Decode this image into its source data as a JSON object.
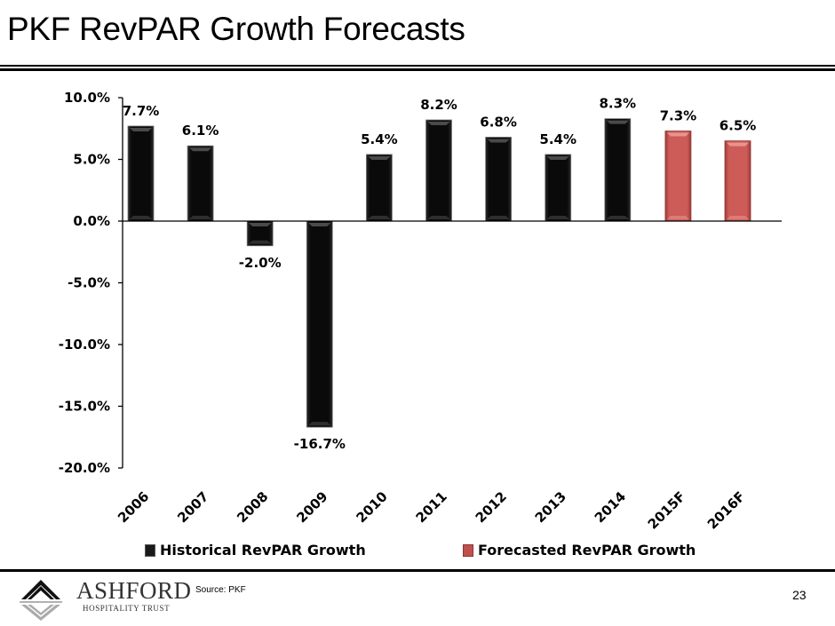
{
  "page": {
    "title": "PKF RevPAR Growth Forecasts",
    "source": "Source:  PKF",
    "page_number": "23",
    "logo": {
      "name": "ASHFORD",
      "subtitle": "HOSPITALITY TRUST"
    }
  },
  "colors": {
    "historical": "#0c0c0c",
    "forecast": "#c0504d"
  },
  "chart_data": {
    "type": "bar",
    "title": "",
    "xlabel": "",
    "ylabel": "",
    "ylim": [
      -20,
      10
    ],
    "yticks": [
      10,
      5,
      0,
      -5,
      -10,
      -15,
      -20
    ],
    "ytick_labels": [
      "10.0%",
      "5.0%",
      "0.0%",
      "-5.0%",
      "-10.0%",
      "-15.0%",
      "-20.0%"
    ],
    "categories": [
      "2006",
      "2007",
      "2008",
      "2009",
      "2010",
      "2011",
      "2012",
      "2013",
      "2014",
      "2015F",
      "2016F"
    ],
    "series": [
      {
        "name": "Historical RevPAR Growth",
        "values": [
          7.7,
          6.1,
          -2.0,
          -16.7,
          5.4,
          8.2,
          6.8,
          5.4,
          8.3,
          null,
          null
        ],
        "labels": [
          "7.7%",
          "6.1%",
          "-2.0%",
          "-16.7%",
          "5.4%",
          "8.2%",
          "6.8%",
          "5.4%",
          "8.3%",
          null,
          null
        ]
      },
      {
        "name": "Forecasted RevPAR Growth",
        "values": [
          null,
          null,
          null,
          null,
          null,
          null,
          null,
          null,
          null,
          7.3,
          6.5
        ],
        "labels": [
          null,
          null,
          null,
          null,
          null,
          null,
          null,
          null,
          null,
          "7.3%",
          "6.5%"
        ]
      }
    ],
    "grid": false,
    "legend": "bottom"
  }
}
